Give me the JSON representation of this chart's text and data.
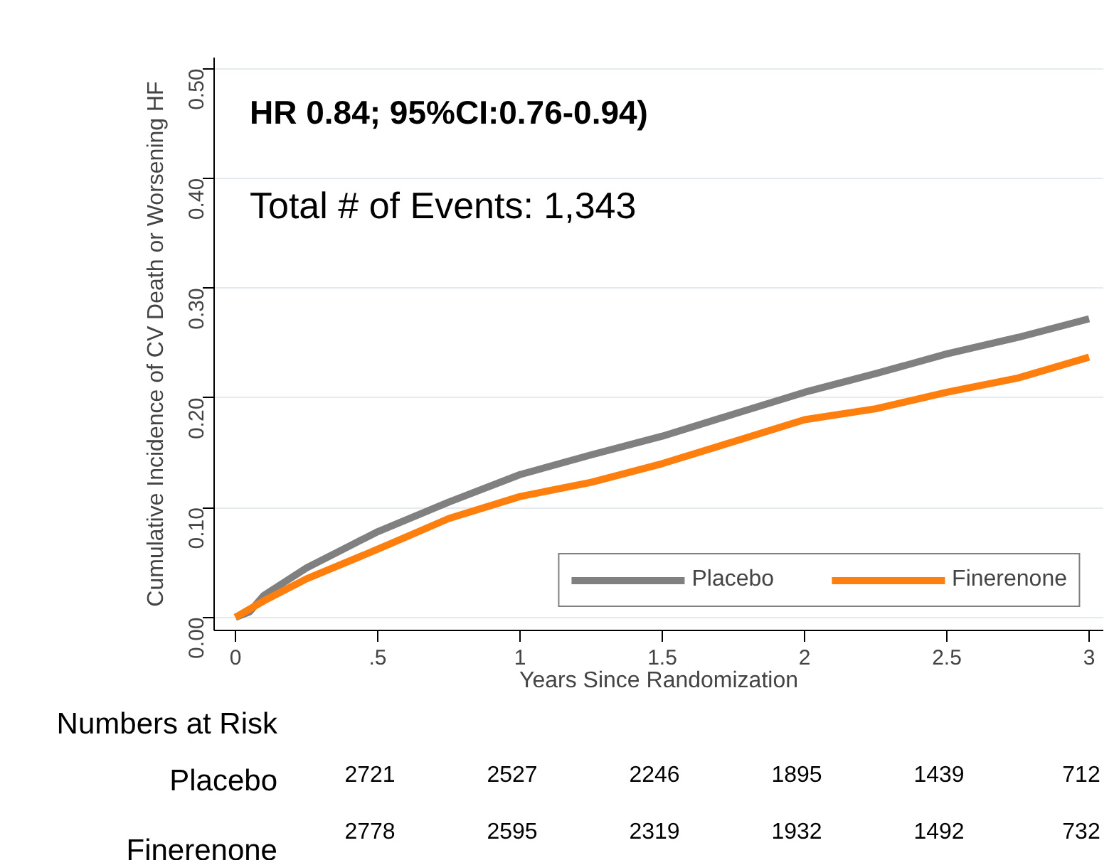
{
  "chart_data": {
    "type": "line",
    "xlabel": "Years Since Randomization",
    "ylabel": "Cumulative Incidence of CV Death or Worsening HF",
    "xlim": [
      -0.075,
      3.05
    ],
    "ylim": [
      -0.012,
      0.51
    ],
    "xticks": [
      0,
      {
        "value": 0.5,
        "label": ".5"
      },
      1,
      1.5,
      2,
      2.5,
      3
    ],
    "yticks": [
      {
        "value": 0,
        "label": "0.00"
      },
      {
        "value": 0.1,
        "label": "0.10"
      },
      {
        "value": 0.2,
        "label": "0.20"
      },
      {
        "value": 0.3,
        "label": "0.30"
      },
      {
        "value": 0.4,
        "label": "0.40"
      },
      {
        "value": 0.5,
        "label": "0.50"
      }
    ],
    "grid": "y",
    "legend": "bottom right",
    "line_style": "solid",
    "marker": "none",
    "series": [
      {
        "name": "Placebo",
        "color": "#808080",
        "x": [
          0,
          0.05,
          0.1,
          0.25,
          0.5,
          0.75,
          1,
          1.25,
          1.5,
          1.75,
          2,
          2.25,
          2.5,
          2.75,
          3
        ],
        "values": [
          0,
          0.005,
          0.02,
          0.045,
          0.078,
          0.105,
          0.13,
          0.148,
          0.165,
          0.185,
          0.205,
          0.222,
          0.24,
          0.255,
          0.272
        ]
      },
      {
        "name": "Finerenone",
        "color": "#ff7f0e",
        "x": [
          0,
          0.1,
          0.25,
          0.5,
          0.75,
          1,
          1.25,
          1.5,
          1.75,
          2,
          2.25,
          2.5,
          2.75,
          3
        ],
        "values": [
          0,
          0.015,
          0.035,
          0.062,
          0.09,
          0.11,
          0.123,
          0.14,
          0.16,
          0.18,
          0.19,
          0.205,
          0.218,
          0.237
        ]
      }
    ],
    "annotations": [
      "HR 0.84; 95%CI:0.76-0.94)",
      "Total # of Events: 1,343",
      "Numbers at Risk",
      "Placebo",
      "2721",
      "2527",
      "2246",
      "1895",
      "1439",
      "712",
      "Finerenone",
      "2778",
      "2595",
      "2319",
      "1932",
      "1492",
      "732"
    ]
  }
}
